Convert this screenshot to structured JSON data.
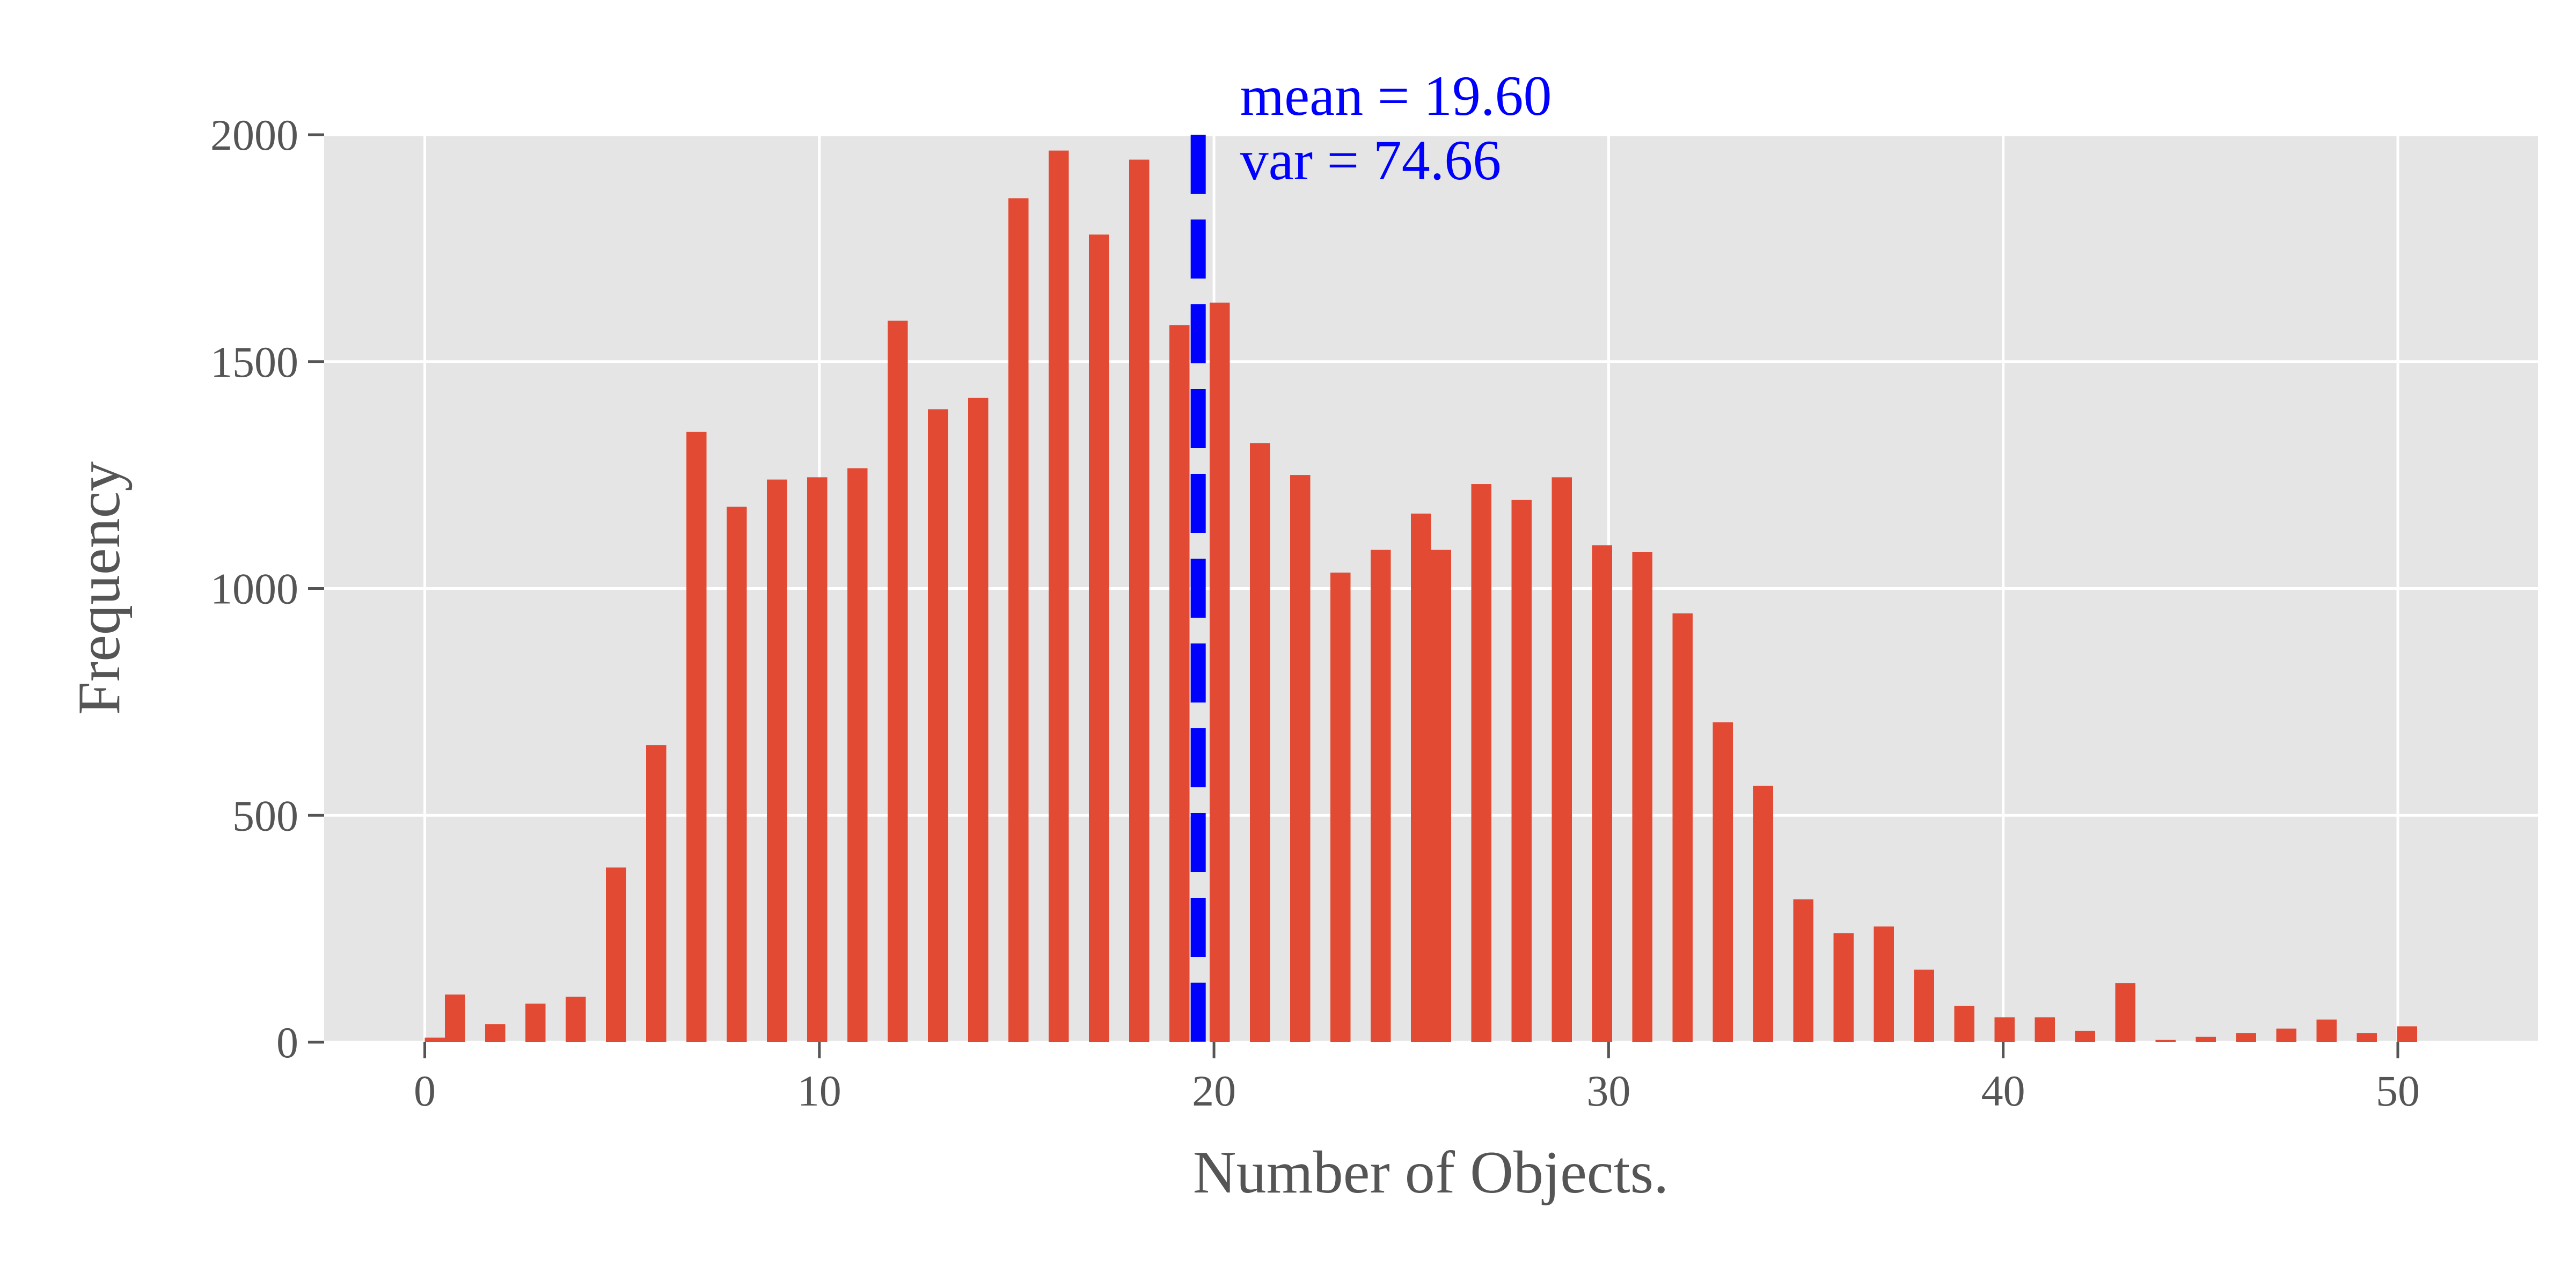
{
  "chart_data": {
    "type": "histogram",
    "xlabel": "Number of Objects.",
    "ylabel": "Frequency",
    "bins": [
      0,
      0.51,
      1.02,
      1.53,
      2.04,
      2.55,
      3.06,
      3.57,
      4.08,
      4.59,
      5.1,
      5.61,
      6.12,
      6.63,
      7.14,
      7.65,
      8.16,
      8.67,
      9.18,
      9.69,
      10.2,
      10.71,
      11.22,
      11.73,
      12.24,
      12.75,
      13.26,
      13.77,
      14.28,
      14.79,
      15.3,
      15.81,
      16.32,
      16.83,
      17.34,
      17.85,
      18.36,
      18.87,
      19.38,
      19.89,
      20.4,
      20.91,
      21.42,
      21.93,
      22.44,
      22.95,
      23.46,
      23.97,
      24.48,
      24.99,
      25.5,
      26.01,
      26.52,
      27.03,
      27.54,
      28.05,
      28.56,
      29.07,
      29.58,
      30.09,
      30.6,
      31.11,
      31.62,
      32.13,
      32.64,
      33.15,
      33.66,
      34.17,
      34.68,
      35.19,
      35.7,
      36.21,
      36.72,
      37.23,
      37.74,
      38.25,
      38.76,
      39.27,
      39.78,
      40.29,
      40.8,
      41.31,
      41.82,
      42.33,
      42.84,
      43.35,
      43.86,
      44.37,
      44.88,
      45.39,
      45.9,
      46.41,
      46.92,
      47.43,
      47.94,
      48.45,
      48.96,
      49.47,
      49.98,
      50.49,
      51
    ],
    "values": [
      10,
      105,
      0,
      40,
      0,
      85,
      0,
      100,
      0,
      385,
      0,
      655,
      0,
      1345,
      0,
      1180,
      0,
      1240,
      0,
      1245,
      0,
      1265,
      0,
      1590,
      0,
      1395,
      0,
      1420,
      0,
      1860,
      0,
      1965,
      0,
      1780,
      0,
      1945,
      0,
      1580,
      0,
      1630,
      0,
      1320,
      0,
      1250,
      0,
      1035,
      0,
      1085,
      0,
      1165,
      1085,
      0,
      1230,
      0,
      1195,
      0,
      1245,
      0,
      1095,
      0,
      1080,
      0,
      945,
      0,
      705,
      0,
      565,
      0,
      315,
      0,
      240,
      0,
      255,
      0,
      160,
      0,
      80,
      0,
      55,
      0,
      55,
      0,
      25,
      0,
      130,
      0,
      5,
      0,
      12,
      0,
      20,
      0,
      30,
      0,
      50,
      0,
      20,
      0,
      35,
      0
    ],
    "color": "#E24A33",
    "vline": {
      "x": 19.6,
      "color": "#0000ff",
      "dashed": true
    },
    "annotations": [
      "mean = 19.60",
      "var = 74.66"
    ],
    "annotation_color": "#0000ff",
    "xlim": [
      -2.55,
      53.55
    ],
    "xticks": [
      0,
      10,
      20,
      30,
      40,
      50
    ],
    "ylim": [
      0,
      2000
    ],
    "yticks": [
      0,
      500,
      1000,
      1500,
      2000
    ],
    "grid": true
  }
}
